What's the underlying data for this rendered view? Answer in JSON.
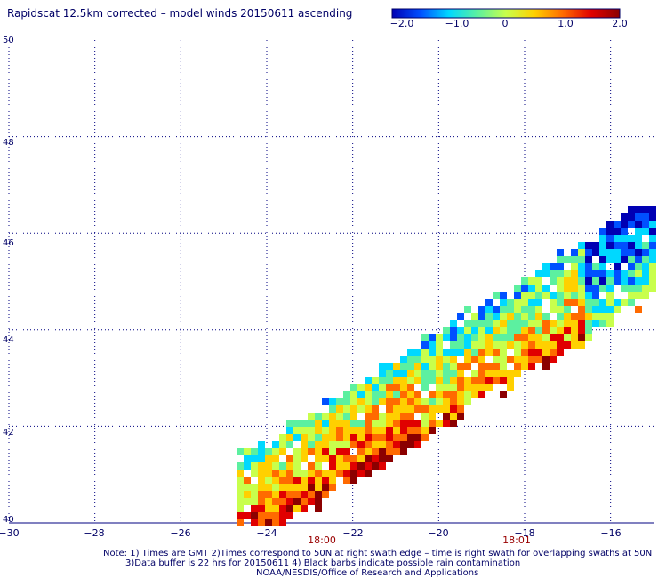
{
  "title": "Rapidscat 12.5km corrected – model winds 20150611 ascending",
  "colorbar": {
    "ticks": [
      "−2.0",
      "−1.0",
      "0",
      "1.0",
      "2.0"
    ],
    "tick_values": [
      -2.0,
      -1.0,
      0,
      1.0,
      2.0
    ],
    "colors": [
      "#0000b4",
      "#0050ff",
      "#00d8ff",
      "#5cf0a0",
      "#c8ff4c",
      "#ffd000",
      "#ff6a00",
      "#e00000",
      "#8b0000"
    ]
  },
  "lat_labels": [
    "50",
    "48",
    "46",
    "44",
    "42",
    "40"
  ],
  "lat_values": [
    50,
    48,
    46,
    44,
    42,
    40
  ],
  "lon_labels": [
    "−30",
    "−28",
    "−26",
    "−24",
    "−22",
    "−20",
    "−18",
    "−16"
  ],
  "lon_values": [
    -30,
    -28,
    -26,
    -24,
    -22,
    -20,
    -18,
    -16
  ],
  "times": [
    {
      "label": "18:00",
      "lon": -22.8
    },
    {
      "label": "18:01",
      "lon": -18.4
    }
  ],
  "notes": {
    "line1": "Note: 1) Times are GMT 2)Times correspond to 50N at right swath edge – time is right swath for overlapping swaths at 50N",
    "line2": "3)Data buffer is 22 hrs for 20150611 4) Black barbs indicate possible rain contamination",
    "line3": "NOAA/NESDIS/Office of Research and Applications"
  },
  "map_extent": {
    "lon": [
      -30,
      -15
    ],
    "lat": [
      40,
      50
    ]
  },
  "swath": {
    "center_start": {
      "lon": -24.4,
      "lat": 40.6
    },
    "center_end": {
      "lon": -15.8,
      "lat": 45.4
    },
    "half_width_deg": 1.0
  }
}
